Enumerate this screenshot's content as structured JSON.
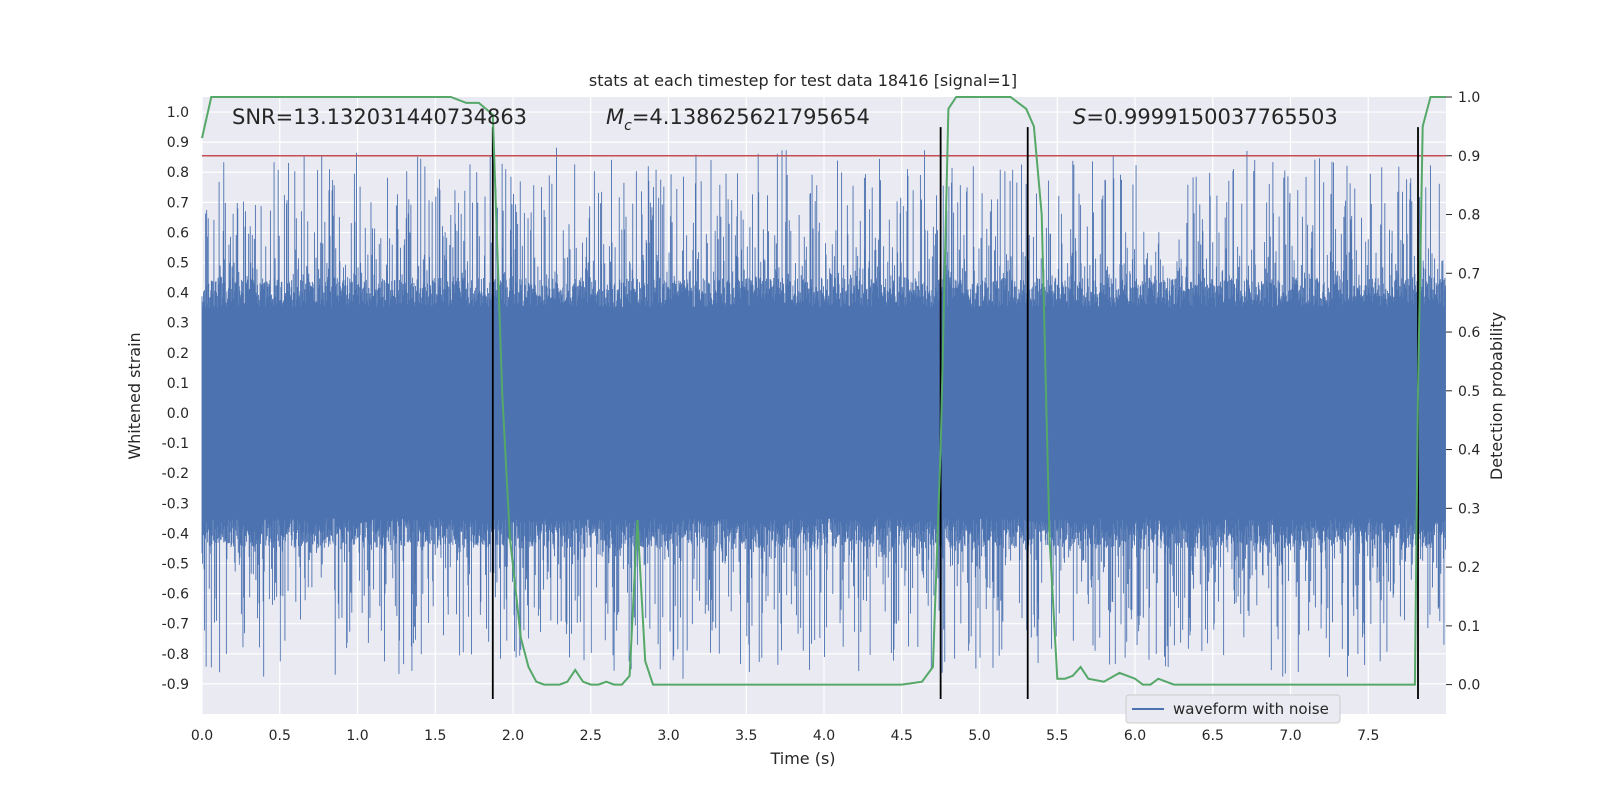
{
  "chart_data": {
    "type": "line",
    "title": "stats at each timestep for test data 18416 [signal=1]",
    "xlabel": "Time (s)",
    "ylabel": "Whitened strain",
    "y2label": "Detection probability",
    "xlim": [
      0.0,
      8.0
    ],
    "ylim": [
      -1.0,
      1.05
    ],
    "y2lim": [
      -0.05,
      1.0
    ],
    "x_ticks": [
      "0.0",
      "0.5",
      "1.0",
      "1.5",
      "2.0",
      "2.5",
      "3.0",
      "3.5",
      "4.0",
      "4.5",
      "5.0",
      "5.5",
      "6.0",
      "6.5",
      "7.0",
      "7.5"
    ],
    "y_ticks": [
      "1.0",
      "0.9",
      "0.8",
      "0.7",
      "0.6",
      "0.5",
      "0.4",
      "0.3",
      "0.2",
      "0.1",
      "0.0",
      "-0.1",
      "-0.2",
      "-0.3",
      "-0.4",
      "-0.5",
      "-0.6",
      "-0.7",
      "-0.8",
      "-0.9"
    ],
    "y2_ticks": [
      "1.0",
      "0.9",
      "0.8",
      "0.7",
      "0.6",
      "0.5",
      "0.4",
      "0.3",
      "0.2",
      "0.1",
      "0.0"
    ],
    "grid": true,
    "legend_position": "lower-right",
    "colors": {
      "background": "#eaeaf2",
      "waveform": "#4c72b0",
      "probability": "#55a868",
      "threshold": "#c44e52",
      "vlines": "#000000"
    },
    "annotations": {
      "snr": "SNR=13.132031440734863",
      "mc_symbol": "M",
      "mc_sub": "c",
      "mc_value": "=4.138625621795654",
      "s_symbol": "S",
      "s_value": "=0.9999150037765503"
    },
    "series": [
      {
        "name": "waveform with noise",
        "axis": "left",
        "style": "noise",
        "core_amplitude": 0.35,
        "peak_amplitude_range": [
          -0.9,
          0.9
        ]
      },
      {
        "name": "",
        "axis": "right",
        "x": [
          0.0,
          0.06,
          0.15,
          0.3,
          0.5,
          0.8,
          1.0,
          1.2,
          1.5,
          1.6,
          1.7,
          1.78,
          1.87,
          1.93,
          1.98,
          2.05,
          2.1,
          2.15,
          2.2,
          2.25,
          2.3,
          2.35,
          2.4,
          2.45,
          2.5,
          2.55,
          2.6,
          2.65,
          2.7,
          2.75,
          2.8,
          2.85,
          2.9,
          2.95,
          3.0,
          3.2,
          3.5,
          4.0,
          4.3,
          4.5,
          4.63,
          4.7,
          4.75,
          4.8,
          4.85,
          4.9,
          5.0,
          5.1,
          5.2,
          5.3,
          5.35,
          5.4,
          5.45,
          5.5,
          5.55,
          5.6,
          5.65,
          5.7,
          5.8,
          5.9,
          6.0,
          6.05,
          6.1,
          6.15,
          6.2,
          6.25,
          6.3,
          6.5,
          6.8,
          7.0,
          7.3,
          7.5,
          7.6,
          7.7,
          7.8,
          7.82,
          7.85,
          7.9,
          7.95,
          8.0
        ],
        "values": [
          0.93,
          1.0,
          1.0,
          1.0,
          1.0,
          1.0,
          1.0,
          1.0,
          1.0,
          1.0,
          0.99,
          0.99,
          0.97,
          0.5,
          0.25,
          0.08,
          0.03,
          0.005,
          0.0,
          0.0,
          0.0,
          0.005,
          0.025,
          0.005,
          0.0,
          0.0,
          0.005,
          0.0,
          0.0,
          0.015,
          0.28,
          0.04,
          0.0,
          0.0,
          0.0,
          0.0,
          0.0,
          0.0,
          0.0,
          0.0,
          0.005,
          0.03,
          0.4,
          0.98,
          1.0,
          1.0,
          1.0,
          1.0,
          1.0,
          0.98,
          0.95,
          0.8,
          0.25,
          0.01,
          0.01,
          0.015,
          0.03,
          0.01,
          0.005,
          0.02,
          0.01,
          0.0,
          0.0,
          0.01,
          0.005,
          0.0,
          0.0,
          0.0,
          0.0,
          0.0,
          0.0,
          0.0,
          0.0,
          0.0,
          0.0,
          0.5,
          0.95,
          1.0,
          1.0,
          1.0
        ]
      }
    ],
    "threshold_y2": 0.9,
    "vlines_x": [
      1.87,
      4.75,
      5.31,
      7.82
    ],
    "vlines_y_range": [
      -0.95,
      0.95
    ]
  }
}
